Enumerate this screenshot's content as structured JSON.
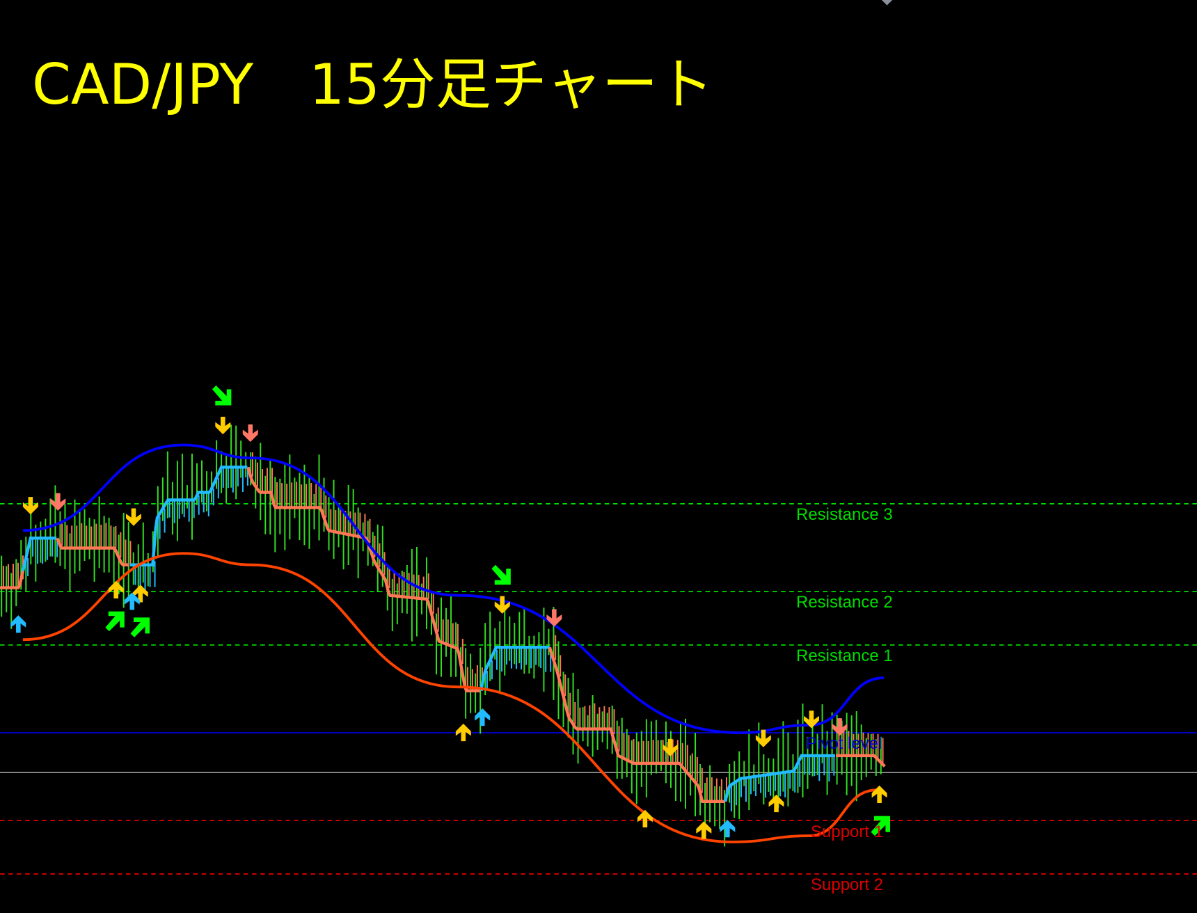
{
  "title": "CAD/JPY　15分足チャート",
  "chart_data": {
    "type": "candlestick",
    "title": "CAD/JPY　15分足チャート",
    "background": "#000000",
    "levels": [
      {
        "name": "Resistance 3",
        "color": "#00ff00",
        "style": "dashed"
      },
      {
        "name": "Resistance 2",
        "color": "#00ff00",
        "style": "dashed"
      },
      {
        "name": "Resistance 1",
        "color": "#00ff00",
        "style": "dashed"
      },
      {
        "name": "Pivot level",
        "color": "#0000ff",
        "style": "solid"
      },
      {
        "name": "",
        "color": "#a0a0a0",
        "style": "solid"
      },
      {
        "name": "Support 1",
        "color": "#ff0000",
        "style": "dashed"
      },
      {
        "name": "Support 2",
        "color": "#ff0000",
        "style": "dashed"
      }
    ],
    "series_colors": {
      "bars": "#33dd22",
      "trend_up": "#22bbff",
      "trend_down": "#ff7755",
      "upper_band": "#0000ff",
      "lower_band": "#ff4400"
    },
    "signals": [
      {
        "type": "arrow-down",
        "color": "#ffcc00"
      },
      {
        "type": "arrow-down",
        "color": "#ffcc00"
      },
      {
        "type": "arrow-down",
        "color": "#ffcc00"
      },
      {
        "type": "arrow-down",
        "color": "#ffcc00"
      },
      {
        "type": "arrow-down",
        "color": "#ffcc00"
      },
      {
        "type": "arrow-down",
        "color": "#ffcc00"
      },
      {
        "type": "arrow-down",
        "color": "#ffcc00"
      },
      {
        "type": "arrow-down",
        "color": "#ff7766"
      },
      {
        "type": "arrow-down",
        "color": "#ff7766"
      },
      {
        "type": "arrow-down",
        "color": "#ff7766"
      },
      {
        "type": "arrow-down",
        "color": "#ff7766"
      },
      {
        "type": "arrow-up",
        "color": "#ffcc00"
      },
      {
        "type": "arrow-up",
        "color": "#ffcc00"
      },
      {
        "type": "arrow-up",
        "color": "#ffcc00"
      },
      {
        "type": "arrow-up",
        "color": "#ffcc00"
      },
      {
        "type": "arrow-up",
        "color": "#ffcc00"
      },
      {
        "type": "arrow-up",
        "color": "#ffcc00"
      },
      {
        "type": "arrow-up",
        "color": "#ffcc00"
      },
      {
        "type": "arrow-up",
        "color": "#22bbff"
      },
      {
        "type": "arrow-up",
        "color": "#22bbff"
      },
      {
        "type": "arrow-up",
        "color": "#22bbff"
      },
      {
        "type": "arrow-up",
        "color": "#22bbff"
      },
      {
        "type": "arrow-down-right",
        "color": "#00ff00"
      },
      {
        "type": "arrow-down-right",
        "color": "#00ff00"
      },
      {
        "type": "arrow-up-right",
        "color": "#00ff00"
      },
      {
        "type": "arrow-up-right",
        "color": "#00ff00"
      },
      {
        "type": "arrow-up-right",
        "color": "#00ff00"
      }
    ]
  }
}
